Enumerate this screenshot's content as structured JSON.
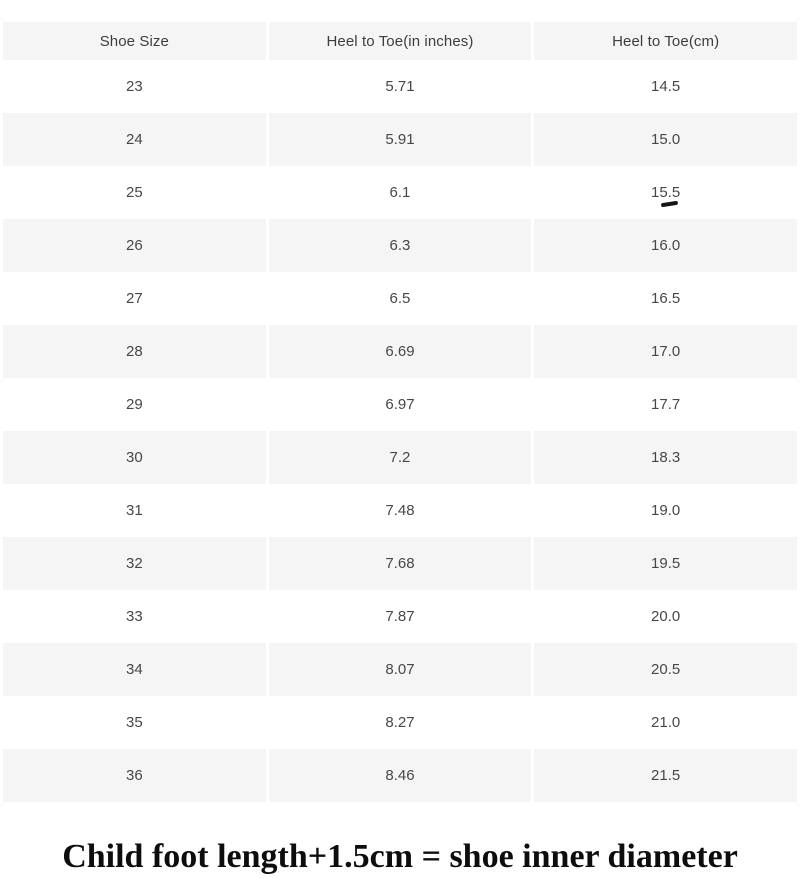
{
  "chart_data": {
    "type": "table",
    "title": "",
    "columns": [
      "Shoe Size",
      "Heel to Toe(in inches)",
      "Heel to Toe(cm)"
    ],
    "rows": [
      {
        "size": "23",
        "inches": "5.71",
        "cm": "14.5"
      },
      {
        "size": "24",
        "inches": "5.91",
        "cm": "15.0"
      },
      {
        "size": "25",
        "inches": "6.1",
        "cm": "15.5"
      },
      {
        "size": "26",
        "inches": "6.3",
        "cm": "16.0"
      },
      {
        "size": "27",
        "inches": "6.5",
        "cm": "16.5"
      },
      {
        "size": "28",
        "inches": "6.69",
        "cm": "17.0"
      },
      {
        "size": "29",
        "inches": "6.97",
        "cm": "17.7"
      },
      {
        "size": "30",
        "inches": "7.2",
        "cm": "18.3"
      },
      {
        "size": "31",
        "inches": "7.48",
        "cm": "19.0"
      },
      {
        "size": "32",
        "inches": "7.68",
        "cm": "19.5"
      },
      {
        "size": "33",
        "inches": "7.87",
        "cm": "20.0"
      },
      {
        "size": "34",
        "inches": "8.07",
        "cm": "20.5"
      },
      {
        "size": "35",
        "inches": "8.27",
        "cm": "21.0"
      },
      {
        "size": "36",
        "inches": "8.46",
        "cm": "21.5"
      }
    ],
    "layout_hints": {
      "striped_rows": true,
      "stripe_pattern": "header gray, data rows alternate white/gray starting white",
      "columns_equal_width": true
    }
  },
  "table": {
    "headers": [
      "Shoe Size",
      "Heel to Toe(in inches)",
      "Heel to Toe(cm)"
    ],
    "rows": [
      {
        "size": "23",
        "inches": "5.71",
        "cm": "14.5"
      },
      {
        "size": "24",
        "inches": "5.91",
        "cm": "15.0"
      },
      {
        "size": "25",
        "inches": "6.1",
        "cm": "15.5"
      },
      {
        "size": "26",
        "inches": "6.3",
        "cm": "16.0"
      },
      {
        "size": "27",
        "inches": "6.5",
        "cm": "16.5"
      },
      {
        "size": "28",
        "inches": "6.69",
        "cm": "17.0"
      },
      {
        "size": "29",
        "inches": "6.97",
        "cm": "17.7"
      },
      {
        "size": "30",
        "inches": "7.2",
        "cm": "18.3"
      },
      {
        "size": "31",
        "inches": "7.48",
        "cm": "19.0"
      },
      {
        "size": "32",
        "inches": "7.68",
        "cm": "19.5"
      },
      {
        "size": "33",
        "inches": "7.87",
        "cm": "20.0"
      },
      {
        "size": "34",
        "inches": "8.07",
        "cm": "20.5"
      },
      {
        "size": "35",
        "inches": "8.27",
        "cm": "21.0"
      },
      {
        "size": "36",
        "inches": "8.46",
        "cm": "21.5"
      }
    ]
  },
  "annotations": {
    "pen_mark": {
      "description": "small hand-drawn black dash under the 15.5 cm value of row size 25",
      "under_value": "15.5"
    }
  },
  "caption": {
    "text": "Child foot length+1.5cm = shoe inner diameter"
  },
  "colors": {
    "stripe_gray": "#f5f5f6",
    "row_white": "#ffffff",
    "table_text": "#474747",
    "header_text": "#3d3d3d",
    "caption_text": "#0d0d0d",
    "pen_mark": "#151515"
  }
}
